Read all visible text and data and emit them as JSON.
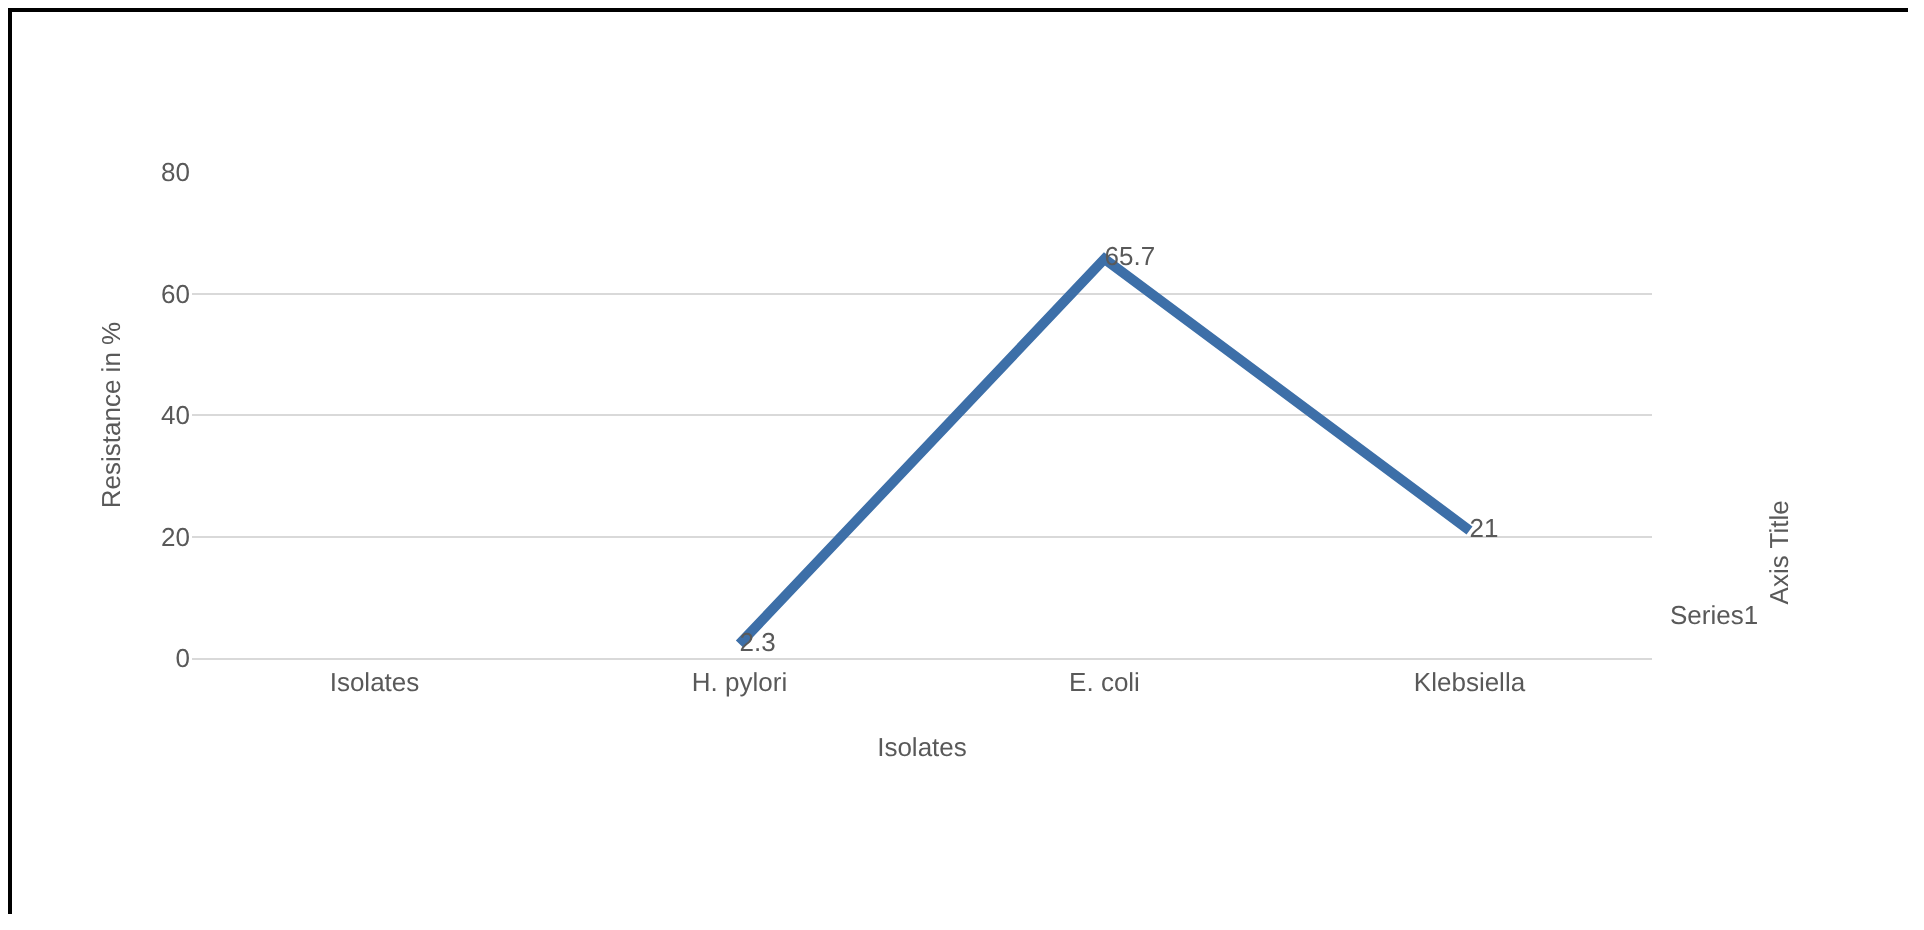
{
  "chart_data": {
    "type": "line",
    "xlabel": "Isolates",
    "ylabel": "Resistance in %",
    "categories": [
      "Isolates",
      "H. pylori",
      "E. coli",
      "Klebsiella"
    ],
    "series": [
      {
        "name": "Series1",
        "color": "#3d6fa8",
        "values": [
          null,
          2.3,
          65.7,
          21
        ]
      }
    ],
    "ylim": [
      0,
      80
    ],
    "yticks": [
      0,
      20,
      40,
      60,
      80
    ],
    "grid": "y",
    "data_labels": true,
    "legend": false,
    "marker": "none",
    "annotations": [
      "Axis Title"
    ]
  }
}
